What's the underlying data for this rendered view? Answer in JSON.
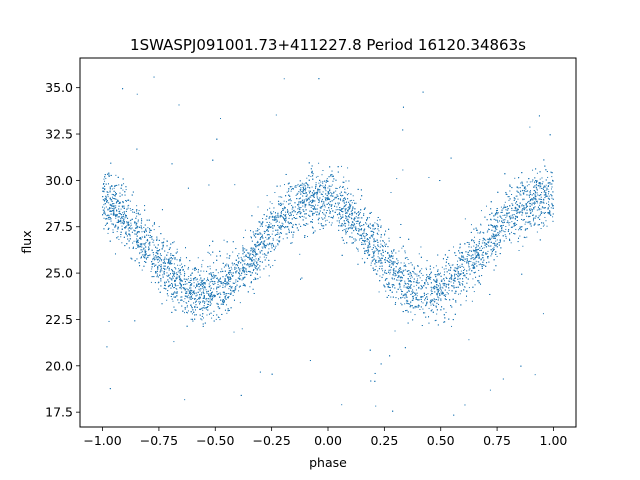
{
  "chart_data": {
    "type": "scatter",
    "title": "1SWASPJ091001.73+411227.8 Period 16120.34863s",
    "xlabel": "phase",
    "ylabel": "flux",
    "xlim": [
      -1.1,
      1.1
    ],
    "ylim": [
      16.7,
      36.6
    ],
    "xticks": [
      -1.0,
      -0.75,
      -0.5,
      -0.25,
      0.0,
      0.25,
      0.5,
      0.75,
      1.0
    ],
    "xtick_labels": [
      "−1.00",
      "−0.75",
      "−0.50",
      "−0.25",
      "0.00",
      "0.25",
      "0.50",
      "0.75",
      "1.00"
    ],
    "yticks": [
      17.5,
      20.0,
      22.5,
      25.0,
      27.5,
      30.0,
      32.5,
      35.0
    ],
    "ytick_labels": [
      "17.5",
      "20.0",
      "22.5",
      "25.0",
      "27.5",
      "30.0",
      "32.5",
      "35.0"
    ],
    "grid": false,
    "series_color": "#1f77b4",
    "curve_model": {
      "description": "sinusoidal light curve repeated over two cycles",
      "mean_flux": 26.5,
      "amplitude": 2.5,
      "peak_phases": [
        -0.05,
        0.95
      ],
      "trough_phases": [
        -0.6,
        0.4
      ],
      "peak_flux": 29.0,
      "trough_flux": 24.0,
      "scatter_sd": 0.8
    },
    "points_per_unit_phase": 4500,
    "outlier_fraction": 0.02
  }
}
